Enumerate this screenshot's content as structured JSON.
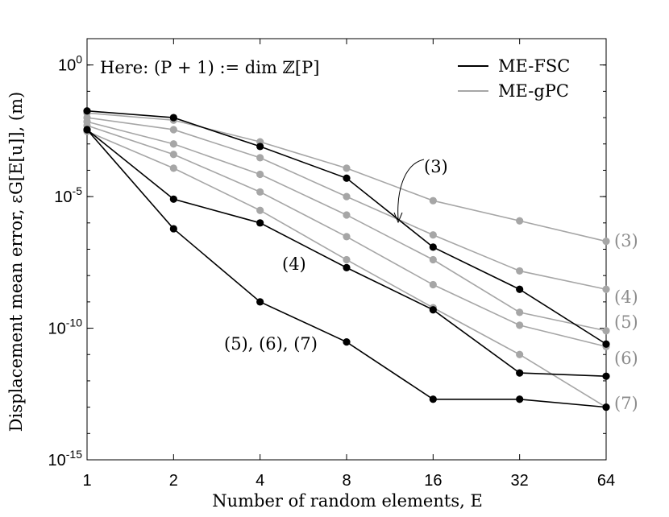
{
  "chart_data": {
    "type": "line",
    "title": "",
    "annotation_text": "Here: (P + 1) := dim ℤ[P]",
    "xlabel": "Number of random elements, E",
    "ylabel": "Displacement mean error, εG[E[u]], (m)",
    "x_scale": "log2",
    "y_scale": "log10",
    "x": [
      1,
      2,
      4,
      8,
      16,
      32,
      64
    ],
    "x_tick_labels": [
      "1",
      "2",
      "4",
      "8",
      "16",
      "32",
      "64"
    ],
    "y_ticks": [
      {
        "base": "10",
        "exp": "0"
      },
      {
        "base": "10",
        "exp": "-5"
      },
      {
        "base": "10",
        "exp": "-10"
      },
      {
        "base": "10",
        "exp": "-15"
      }
    ],
    "ylim": [
      1e-15,
      10
    ],
    "grid": false,
    "legend": {
      "placement": "top-right",
      "entries": [
        {
          "label": "ME-FSC",
          "color": "#000000"
        },
        {
          "label": "ME-gPC",
          "color": "#a6a6a6"
        }
      ]
    },
    "colors": {
      "fsc": "#000000",
      "gpc": "#a6a6a6"
    },
    "series": [
      {
        "group": "ME-gPC",
        "order": "(3)",
        "values": [
          0.015,
          0.008,
          0.0012,
          0.00012,
          7e-06,
          1.2e-06,
          2e-07
        ]
      },
      {
        "group": "ME-gPC",
        "order": "(4)",
        "values": [
          0.01,
          0.0035,
          0.0003,
          1e-05,
          3.5e-07,
          1.5e-08,
          3e-09
        ]
      },
      {
        "group": "ME-gPC",
        "order": "(5)",
        "values": [
          0.007,
          0.001,
          7e-05,
          2e-06,
          4e-08,
          4e-10,
          8e-11
        ]
      },
      {
        "group": "ME-gPC",
        "order": "(6)",
        "values": [
          0.005,
          0.0004,
          1.5e-05,
          3e-07,
          4.5e-09,
          1.3e-10,
          2e-11
        ]
      },
      {
        "group": "ME-gPC",
        "order": "(7)",
        "values": [
          0.003,
          0.00012,
          3e-06,
          4e-08,
          6e-10,
          1e-11,
          1e-13
        ]
      },
      {
        "group": "ME-FSC",
        "order": "(3)",
        "values": [
          0.018,
          0.01,
          0.0008,
          5e-05,
          1.2e-07,
          3e-09,
          2.5e-11
        ]
      },
      {
        "group": "ME-FSC",
        "order": "(4)",
        "values": [
          0.0035,
          8e-06,
          1e-06,
          2e-08,
          5e-10,
          2e-12,
          1.5e-12
        ]
      },
      {
        "group": "ME-FSC",
        "order": "(5), (6), (7)",
        "values": [
          0.0035,
          6e-07,
          1e-09,
          3e-11,
          2e-13,
          2e-13,
          1e-13
        ]
      }
    ],
    "annotations": [
      {
        "text": "(3)",
        "target": "ME-FSC (3)"
      },
      {
        "text": "(4)",
        "target": "ME-FSC (4)"
      },
      {
        "text": "(5), (6), (7)",
        "target": "ME-FSC (5), (6), (7)"
      }
    ],
    "right_labels": [
      "(3)",
      "(4)",
      "(5)",
      "(6)",
      "(7)"
    ]
  }
}
